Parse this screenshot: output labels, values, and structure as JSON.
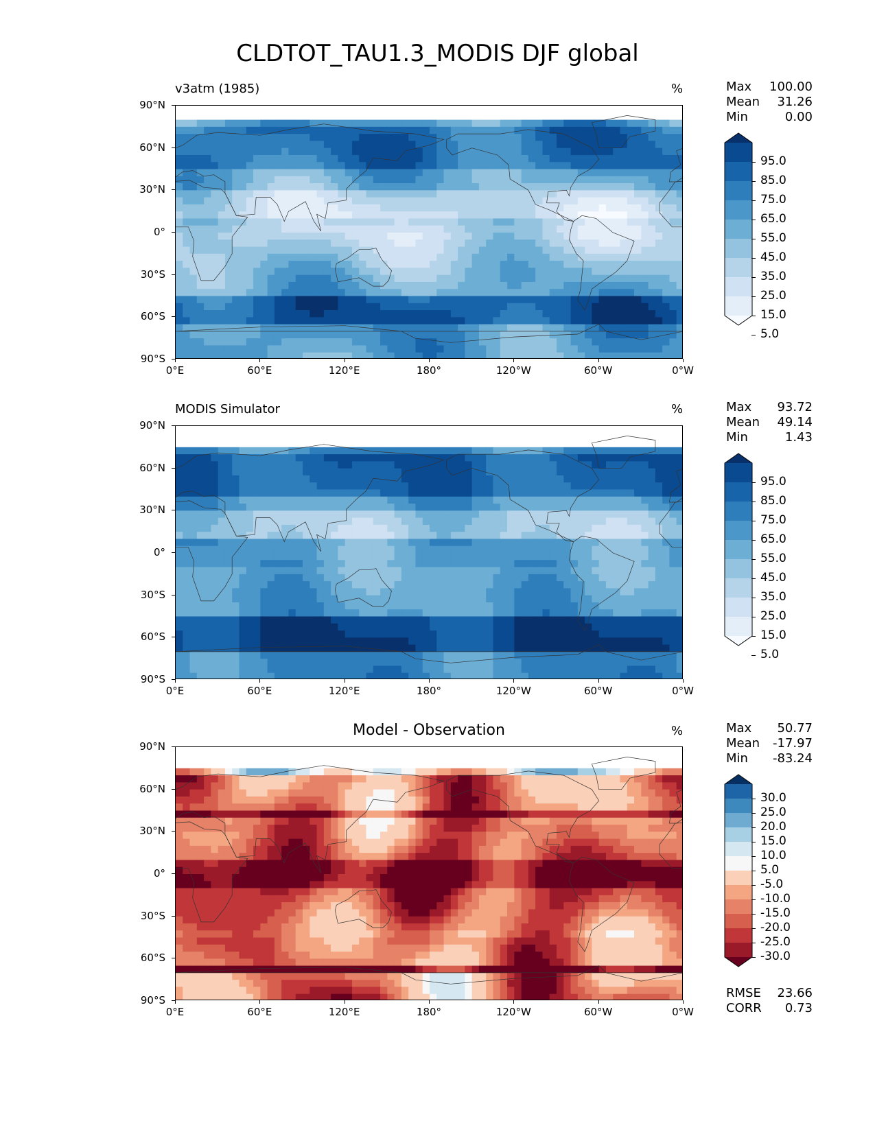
{
  "figure_title": "CLDTOT_TAU1.3_MODIS DJF global",
  "x_ticks": [
    "0°E",
    "60°E",
    "120°E",
    "180°",
    "120°W",
    "60°W",
    "0°W"
  ],
  "y_ticks": [
    "90°N",
    "60°N",
    "30°N",
    "0°",
    "30°S",
    "60°S",
    "90°S"
  ],
  "colors": {
    "blues": [
      "#f7fbff",
      "#e3eef9",
      "#cfe1f2",
      "#b5d4e9",
      "#93c3df",
      "#6daed5",
      "#4b97c9",
      "#2f7ebc",
      "#1864aa",
      "#0a4a90",
      "#08306b"
    ],
    "rdbu": [
      "#67001f",
      "#9a1a2a",
      "#c13639",
      "#d6604d",
      "#e58267",
      "#f4a582",
      "#fbd0b9",
      "#f7f7f7",
      "#d5e7f0",
      "#a7d0e4",
      "#6fabd0",
      "#3d89be",
      "#1d65a6",
      "#053061"
    ],
    "coastline": "#333333"
  },
  "panels": [
    {
      "title_left": "v3atm (1985)",
      "title_center": "",
      "units": "%",
      "stats": [
        {
          "label": "Max",
          "value": "100.00"
        },
        {
          "label": "Mean",
          "value": "31.26"
        },
        {
          "label": "Min",
          "value": "0.00"
        }
      ],
      "colorbar_labels": [
        "95.0",
        "85.0",
        "75.0",
        "65.0",
        "55.0",
        "45.0",
        "35.0",
        "25.0",
        "15.0",
        "5.0"
      ],
      "extra_stats": []
    },
    {
      "title_left": "MODIS Simulator",
      "title_center": "",
      "units": "%",
      "stats": [
        {
          "label": "Max",
          "value": "93.72"
        },
        {
          "label": "Mean",
          "value": "49.14"
        },
        {
          "label": "Min",
          "value": "1.43"
        }
      ],
      "colorbar_labels": [
        "95.0",
        "85.0",
        "75.0",
        "65.0",
        "55.0",
        "45.0",
        "35.0",
        "25.0",
        "15.0",
        "5.0"
      ],
      "extra_stats": []
    },
    {
      "title_left": "",
      "title_center": "Model - Observation",
      "units": "%",
      "stats": [
        {
          "label": "Max",
          "value": "50.77"
        },
        {
          "label": "Mean",
          "value": "-17.97"
        },
        {
          "label": "Min",
          "value": "-83.24"
        }
      ],
      "colorbar_labels": [
        "30.0",
        "25.0",
        "20.0",
        "15.0",
        "10.0",
        "5.0",
        "-5.0",
        "-10.0",
        "-15.0",
        "-20.0",
        "-25.0",
        "-30.0"
      ],
      "extra_stats": [
        {
          "label": "RMSE",
          "value": "23.66"
        },
        {
          "label": "CORR",
          "value": "0.73"
        }
      ]
    }
  ]
}
